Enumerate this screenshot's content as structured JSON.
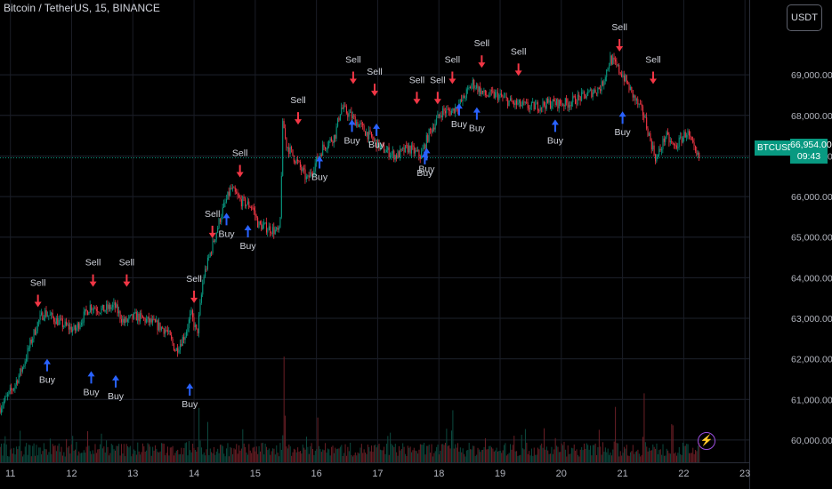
{
  "header": {
    "symbol_title": "Bitcoin / TetherUS, 15, BINANCE",
    "currency_button": "USDT"
  },
  "price_scale": {
    "ticks": [
      "69,000.00",
      "68,000.00",
      "67,000.00",
      "66,000.00",
      "65,000.00",
      "64,000.00",
      "63,000.00",
      "62,000.00",
      "61,000.00",
      "60,000.00"
    ],
    "current_symbol": "BTCUSDT",
    "current_price": "66,954.00",
    "countdown": "09:43"
  },
  "colors": {
    "up": "#089981",
    "down": "#f23645",
    "buy": "#2962ff",
    "sell": "#f23645",
    "background": "#000000"
  },
  "chart_data": {
    "type": "candlestick",
    "x_ticks": [
      "11",
      "12",
      "13",
      "14",
      "15",
      "16",
      "17",
      "18",
      "19",
      "20",
      "21",
      "22",
      "23"
    ],
    "y_ticks": [
      60000,
      61000,
      62000,
      63000,
      64000,
      65000,
      66000,
      67000,
      68000,
      69000
    ],
    "ylim": [
      59450,
      70450
    ],
    "x_range": [
      10.83,
      23.07
    ],
    "last_price": 66954,
    "path": [
      [
        10.83,
        60800
      ],
      [
        11.05,
        61300
      ],
      [
        11.2,
        61800
      ],
      [
        11.35,
        62500
      ],
      [
        11.45,
        62900
      ],
      [
        11.55,
        63150
      ],
      [
        11.7,
        63000
      ],
      [
        11.85,
        62850
      ],
      [
        12.05,
        62700
      ],
      [
        12.3,
        63300
      ],
      [
        12.5,
        63200
      ],
      [
        12.7,
        63300
      ],
      [
        12.85,
        62900
      ],
      [
        13.05,
        63050
      ],
      [
        13.3,
        62900
      ],
      [
        13.55,
        62700
      ],
      [
        13.7,
        62200
      ],
      [
        13.85,
        62600
      ],
      [
        13.95,
        63100
      ],
      [
        14.05,
        62600
      ],
      [
        14.15,
        64000
      ],
      [
        14.3,
        64800
      ],
      [
        14.45,
        65600
      ],
      [
        14.6,
        66200
      ],
      [
        14.75,
        65900
      ],
      [
        14.95,
        65750
      ],
      [
        15.05,
        65300
      ],
      [
        15.25,
        65200
      ],
      [
        15.4,
        65100
      ],
      [
        15.45,
        67900
      ],
      [
        15.5,
        67300
      ],
      [
        15.7,
        66800
      ],
      [
        15.85,
        66400
      ],
      [
        16.1,
        67200
      ],
      [
        16.3,
        67500
      ],
      [
        16.4,
        68200
      ],
      [
        16.55,
        68000
      ],
      [
        16.8,
        67600
      ],
      [
        17.05,
        67200
      ],
      [
        17.3,
        67000
      ],
      [
        17.5,
        67200
      ],
      [
        17.7,
        67000
      ],
      [
        17.85,
        67600
      ],
      [
        18.05,
        68100
      ],
      [
        18.2,
        68100
      ],
      [
        18.35,
        68300
      ],
      [
        18.55,
        68800
      ],
      [
        18.75,
        68500
      ],
      [
        18.95,
        68500
      ],
      [
        19.2,
        68300
      ],
      [
        19.5,
        68200
      ],
      [
        19.8,
        68300
      ],
      [
        20.1,
        68300
      ],
      [
        20.4,
        68500
      ],
      [
        20.65,
        68700
      ],
      [
        20.8,
        69400
      ],
      [
        21.0,
        69000
      ],
      [
        21.2,
        68400
      ],
      [
        21.35,
        68000
      ],
      [
        21.45,
        67400
      ],
      [
        21.55,
        66900
      ],
      [
        21.7,
        67500
      ],
      [
        21.85,
        67200
      ],
      [
        22.05,
        67600
      ],
      [
        22.2,
        67000
      ],
      [
        22.25,
        66954
      ]
    ],
    "buy_signals": [
      [
        11.6,
        62.0,
        "Buy"
      ],
      [
        12.32,
        61.7,
        "Buy"
      ],
      [
        12.72,
        61.6,
        "Buy"
      ],
      [
        13.93,
        61.4,
        "Buy"
      ],
      [
        14.53,
        65.6,
        "Buy"
      ],
      [
        14.88,
        65.3,
        "Buy"
      ],
      [
        16.05,
        67.0,
        "Buy"
      ],
      [
        16.58,
        67.9,
        "Buy"
      ],
      [
        16.98,
        67.8,
        "Buy"
      ],
      [
        17.77,
        67.1,
        "Buy"
      ],
      [
        17.8,
        67.2,
        "Buy"
      ],
      [
        18.33,
        68.3,
        "Buy"
      ],
      [
        18.62,
        68.2,
        "Buy"
      ],
      [
        19.9,
        67.9,
        "Buy"
      ],
      [
        21.0,
        68.1,
        "Buy"
      ]
    ],
    "sell_signals": [
      [
        11.45,
        63.8,
        "Sell"
      ],
      [
        12.35,
        64.3,
        "Sell"
      ],
      [
        12.9,
        64.3,
        "Sell"
      ],
      [
        14.0,
        63.9,
        "Sell"
      ],
      [
        14.3,
        65.5,
        "Sell"
      ],
      [
        14.75,
        67.0,
        "Sell"
      ],
      [
        15.7,
        68.3,
        "Sell"
      ],
      [
        16.6,
        69.3,
        "Sell"
      ],
      [
        16.95,
        69.0,
        "Sell"
      ],
      [
        17.64,
        68.8,
        "Sell"
      ],
      [
        17.98,
        68.8,
        "Sell"
      ],
      [
        18.22,
        69.3,
        "Sell"
      ],
      [
        18.7,
        69.7,
        "Sell"
      ],
      [
        19.3,
        69.5,
        "Sell"
      ],
      [
        20.95,
        70.1,
        "Sell"
      ],
      [
        21.5,
        69.3,
        "Sell"
      ]
    ],
    "volume_spikes": [
      [
        15.47,
        1.0
      ],
      [
        18.22,
        0.55
      ],
      [
        20.88,
        0.5
      ],
      [
        21.35,
        0.62
      ],
      [
        14.08,
        0.5
      ],
      [
        16.02,
        0.4
      ]
    ]
  }
}
